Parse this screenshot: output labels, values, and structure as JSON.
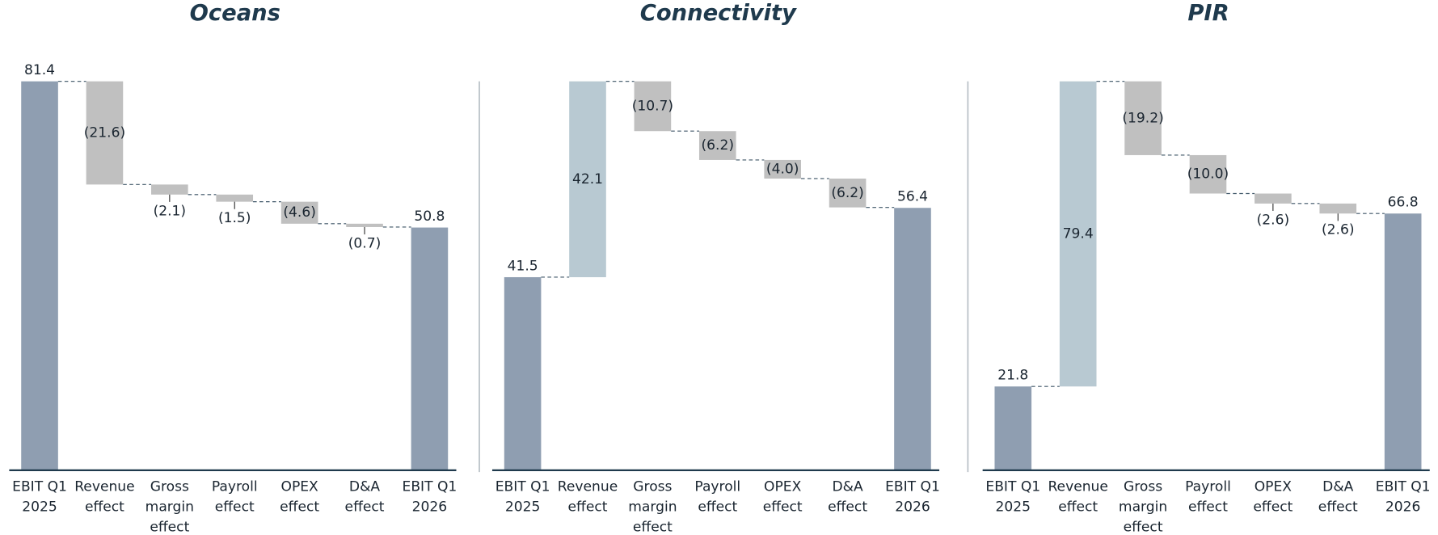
{
  "chart_data": [
    {
      "type": "waterfall",
      "title": "Oceans",
      "categories": [
        "EBIT Q1 2025",
        "Revenue effect",
        "Gross margin effect",
        "Payroll effect",
        "OPEX effect",
        "D&A effect",
        "EBIT Q1 2026"
      ],
      "measure": [
        "absolute",
        "relative",
        "relative",
        "relative",
        "relative",
        "relative",
        "total"
      ],
      "values": [
        81.4,
        -21.6,
        -2.1,
        -1.5,
        -4.6,
        -0.7,
        50.8
      ],
      "value_labels": [
        "81.4",
        "(21.6)",
        "(2.1)",
        "(1.5)",
        "(4.6)",
        "(0.7)",
        "50.8"
      ],
      "colors": {
        "total": "#8f9eb1",
        "increase": "#b8c9d2",
        "decrease": "#c0c0c0"
      }
    },
    {
      "type": "waterfall",
      "title": "Connectivity",
      "categories": [
        "EBIT Q1 2025",
        "Revenue effect",
        "Gross margin effect",
        "Payroll effect",
        "OPEX effect",
        "D&A effect",
        "EBIT Q1 2026"
      ],
      "measure": [
        "absolute",
        "relative",
        "relative",
        "relative",
        "relative",
        "relative",
        "total"
      ],
      "values": [
        41.5,
        42.1,
        -10.7,
        -6.2,
        -4.0,
        -6.2,
        56.4
      ],
      "value_labels": [
        "41.5",
        "42.1",
        "(10.7)",
        "(6.2)",
        "(4.0)",
        "(6.2)",
        "56.4"
      ],
      "colors": {
        "total": "#8f9eb1",
        "increase": "#b8c9d2",
        "decrease": "#c0c0c0"
      }
    },
    {
      "type": "waterfall",
      "title": "PIR",
      "categories": [
        "EBIT Q1 2025",
        "Revenue effect",
        "Gross margin effect",
        "Payroll effect",
        "OPEX effect",
        "D&A effect",
        "EBIT Q1 2026"
      ],
      "measure": [
        "absolute",
        "relative",
        "relative",
        "relative",
        "relative",
        "relative",
        "total"
      ],
      "values": [
        21.8,
        79.4,
        -19.2,
        -10.0,
        -2.6,
        -2.6,
        66.8
      ],
      "value_labels": [
        "21.8",
        "79.4",
        "(19.2)",
        "(10.0)",
        "(2.6)",
        "(2.6)",
        "66.8"
      ],
      "colors": {
        "total": "#8f9eb1",
        "increase": "#b8c9d2",
        "decrease": "#c0c0c0"
      }
    }
  ]
}
